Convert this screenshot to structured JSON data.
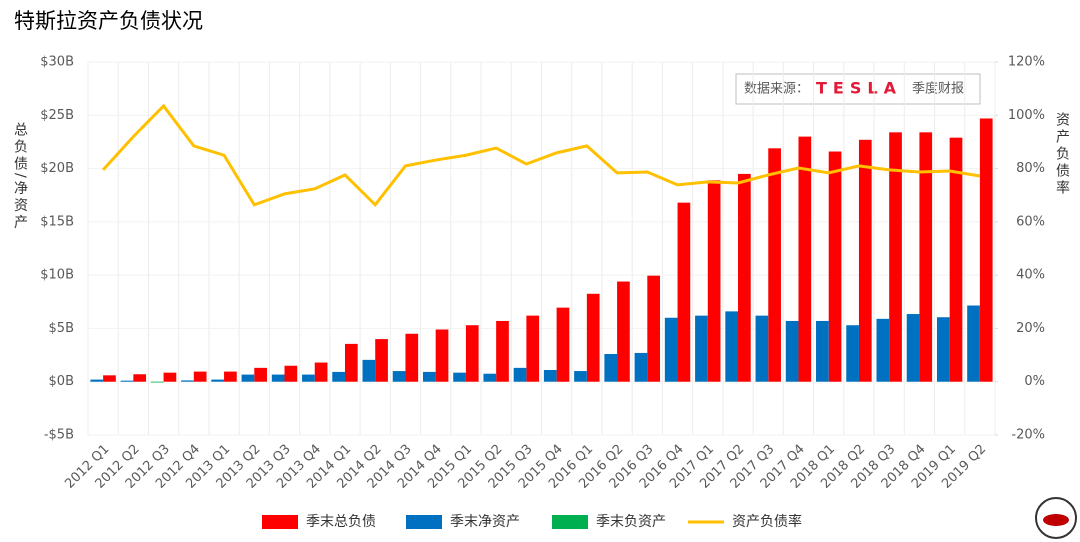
{
  "chart_data": {
    "type": "bar-line",
    "title": "特斯拉资产负债状况",
    "y_label": "总负债/净资产",
    "y2_label": "资产负债率",
    "source": {
      "prefix": "数据来源：",
      "logo": "TESLA",
      "suffix": "季度财报"
    },
    "categories": [
      "2012 Q1",
      "2012 Q2",
      "2012 Q3",
      "2012 Q4",
      "2013 Q1",
      "2013 Q2",
      "2013 Q3",
      "2013 Q4",
      "2014 Q1",
      "2014 Q2",
      "2014 Q3",
      "2014 Q4",
      "2015 Q1",
      "2015 Q2",
      "2015 Q3",
      "2015 Q4",
      "2016 Q1",
      "2016 Q2",
      "2016 Q3",
      "2016 Q4",
      "2017 Q1",
      "2017 Q2",
      "2017 Q3",
      "2017 Q4",
      "2018 Q1",
      "2018 Q2",
      "2018 Q3",
      "2018 Q4",
      "2019 Q1",
      "2019 Q2"
    ],
    "series": [
      {
        "name": "季末总负债",
        "color": "#ff0000",
        "kind": "bar",
        "values": [
          0.6,
          0.7,
          0.85,
          0.95,
          0.95,
          1.3,
          1.5,
          1.8,
          3.55,
          4.0,
          4.5,
          4.9,
          5.3,
          5.7,
          6.2,
          6.95,
          8.25,
          9.4,
          9.95,
          16.8,
          18.9,
          19.5,
          21.9,
          23.0,
          21.6,
          22.7,
          23.4,
          23.4,
          22.9,
          24.7
        ]
      },
      {
        "name": "季末净资产",
        "color": "#0070c0",
        "kind": "bar",
        "values": [
          0.2,
          0.1,
          null,
          0.12,
          0.2,
          0.67,
          0.67,
          0.67,
          0.92,
          2.05,
          1.0,
          0.92,
          0.85,
          0.75,
          1.3,
          1.1,
          1.0,
          2.6,
          2.7,
          6.0,
          6.2,
          6.6,
          6.2,
          5.7,
          5.7,
          5.3,
          5.9,
          6.35,
          6.05,
          7.15
        ]
      },
      {
        "name": "季末负资产",
        "color": "#00b050",
        "kind": "bar",
        "values": [
          null,
          null,
          -0.05,
          null,
          null,
          null,
          null,
          null,
          null,
          null,
          null,
          null,
          null,
          null,
          null,
          null,
          null,
          null,
          null,
          null,
          null,
          null,
          null,
          null,
          null,
          null,
          null,
          null,
          null,
          null
        ]
      },
      {
        "name": "资产负债率",
        "color": "#ffc000",
        "kind": "line",
        "axis": "y2",
        "values": [
          79.5,
          92,
          103.5,
          88.5,
          85,
          66.4,
          70.5,
          72.4,
          77.6,
          66.4,
          81,
          83.2,
          85,
          87.7,
          81.7,
          85.9,
          88.5,
          78.4,
          78.7,
          73.9,
          75,
          74.6,
          77.6,
          80.2,
          78.4,
          81,
          79.5,
          78.7,
          79.1,
          77.2
        ]
      }
    ],
    "ylim": [
      -5,
      30
    ],
    "yticks": [
      {
        "value": -5,
        "label": "-$5B"
      },
      {
        "value": 0,
        "label": "$0B"
      },
      {
        "value": 5,
        "label": "$5B"
      },
      {
        "value": 10,
        "label": "$10B"
      },
      {
        "value": 15,
        "label": "$15B"
      },
      {
        "value": 20,
        "label": "$20B"
      },
      {
        "value": 25,
        "label": "$25B"
      },
      {
        "value": 30,
        "label": "$30B"
      }
    ],
    "y2lim": [
      -20,
      120
    ],
    "y2ticks": [
      {
        "value": -20,
        "label": "-20%"
      },
      {
        "value": 0,
        "label": "0%"
      },
      {
        "value": 20,
        "label": "20%"
      },
      {
        "value": 40,
        "label": "40%"
      },
      {
        "value": 60,
        "label": "60%"
      },
      {
        "value": 80,
        "label": "80%"
      },
      {
        "value": 100,
        "label": "100%"
      },
      {
        "value": 120,
        "label": "120%"
      }
    ],
    "grid": true
  }
}
